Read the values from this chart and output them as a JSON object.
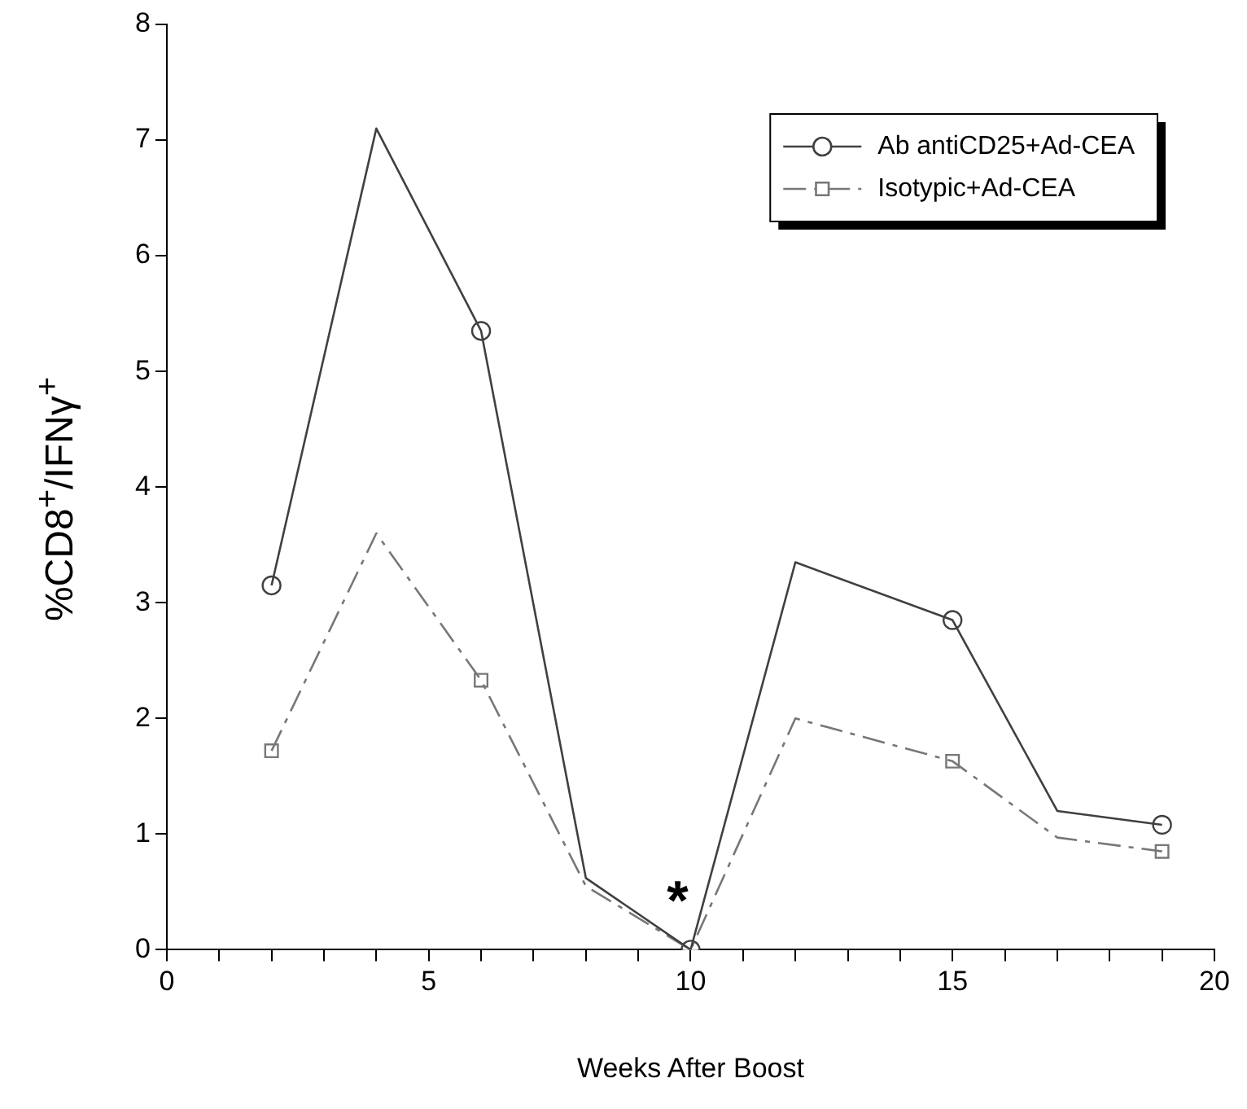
{
  "chart_data": {
    "type": "line",
    "xlabel": "Weeks After Boost",
    "ylabel": "%CD8$^{+}$/IFNγ$^{+}$",
    "x": [
      2,
      4,
      6,
      8,
      10,
      12,
      15,
      17,
      19
    ],
    "series": [
      {
        "name": "Ab antiCD25+Ad-CEA",
        "color": "#404040",
        "line_style": "solid",
        "marker": "none",
        "values": [
          3.15,
          7.1,
          5.35,
          0.62,
          0,
          3.35,
          2.85,
          1.2,
          1.08
        ]
      },
      {
        "name": "Isotypic+Ad-CEA",
        "color": "#777777",
        "line_style": "dashed",
        "marker": "none",
        "values": [
          1.72,
          3.6,
          2.33,
          0.55,
          0,
          2.0,
          1.63,
          0.97,
          0.85
        ]
      },
      {
        "type": "scatter",
        "color": "#404040",
        "marker": "circle",
        "x": [
          2,
          6,
          10,
          15,
          19
        ],
        "values": [
          3.15,
          5.35,
          0,
          2.85,
          1.08
        ]
      },
      {
        "type": "scatter",
        "color": "#777777",
        "marker": "square",
        "x": [
          2,
          6,
          10,
          15,
          19
        ],
        "values": [
          1.72,
          2.33,
          0,
          1.63,
          0.85
        ]
      }
    ],
    "xlim": [
      0,
      20
    ],
    "xticks": [
      0,
      {
        "value": 1,
        "label": null
      },
      {
        "value": 2,
        "label": null
      },
      {
        "value": 3,
        "label": null
      },
      {
        "value": 4,
        "label": null
      },
      5,
      {
        "value": 6,
        "label": null
      },
      {
        "value": 7,
        "label": null
      },
      {
        "value": 8,
        "label": null
      },
      {
        "value": 9,
        "label": null
      },
      10,
      {
        "value": 11,
        "label": null
      },
      {
        "value": 12,
        "label": null
      },
      {
        "value": 13,
        "label": null
      },
      {
        "value": 14,
        "label": null
      },
      15,
      {
        "value": 16,
        "label": null
      },
      {
        "value": 17,
        "label": null
      },
      {
        "value": 18,
        "label": null
      },
      {
        "value": 19,
        "label": null
      },
      20
    ],
    "ylim": [
      0,
      8
    ],
    "yticks": [
      0,
      1,
      2,
      3,
      4,
      5,
      6,
      7,
      8
    ],
    "annotations": [
      "*"
    ],
    "legend": "top right"
  }
}
